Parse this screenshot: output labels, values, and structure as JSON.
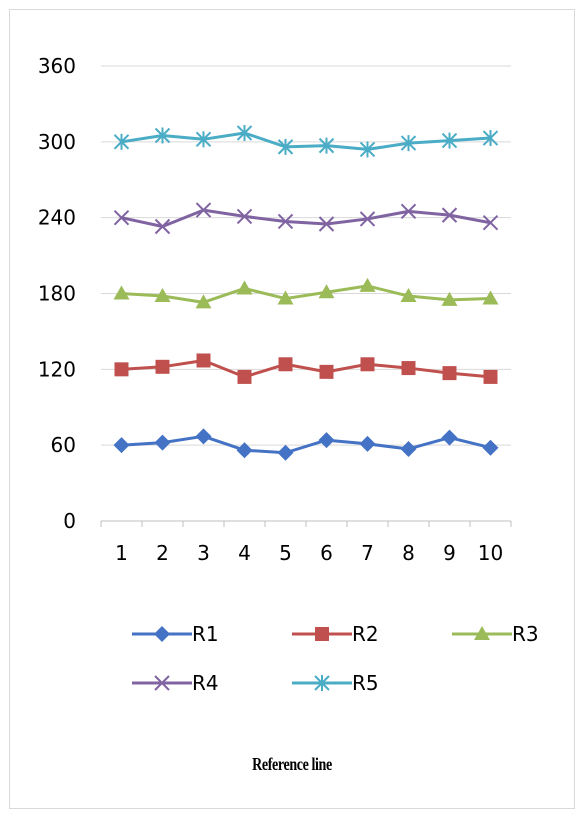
{
  "chart_data": {
    "type": "line",
    "title": "",
    "xlabel": "",
    "ylabel": "",
    "categories": [
      "1",
      "2",
      "3",
      "4",
      "5",
      "6",
      "7",
      "8",
      "9",
      "10"
    ],
    "ylim": [
      0,
      360
    ],
    "yticks": [
      "0",
      "60",
      "120",
      "180",
      "240",
      "300",
      "360"
    ],
    "grid": true,
    "legend": "bottom",
    "series": [
      {
        "name": "R1",
        "color": "#4472C4",
        "marker": "diamond",
        "values": [
          60,
          62,
          67,
          56,
          54,
          64,
          61,
          57,
          66,
          58
        ]
      },
      {
        "name": "R2",
        "color": "#C0504D",
        "marker": "square",
        "values": [
          120,
          122,
          127,
          114,
          124,
          118,
          124,
          121,
          117,
          114
        ]
      },
      {
        "name": "R3",
        "color": "#9BBB59",
        "marker": "triangle",
        "values": [
          180,
          178,
          173,
          184,
          176,
          181,
          186,
          178,
          175,
          176
        ]
      },
      {
        "name": "R4",
        "color": "#8064A2",
        "marker": "x",
        "values": [
          240,
          233,
          246,
          241,
          237,
          235,
          239,
          245,
          242,
          236
        ]
      },
      {
        "name": "R5",
        "color": "#4BACC6",
        "marker": "asterisk",
        "values": [
          300,
          305,
          302,
          307,
          296,
          297,
          294,
          299,
          301,
          303
        ]
      }
    ]
  },
  "footer": {
    "caption": "Reference line"
  }
}
